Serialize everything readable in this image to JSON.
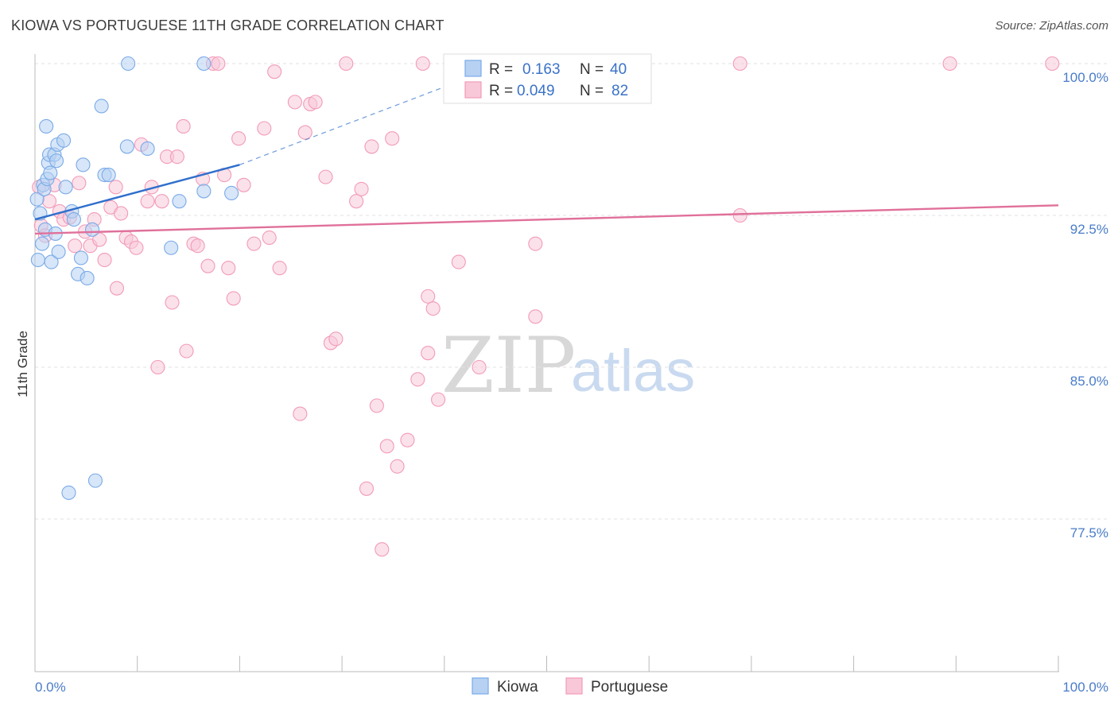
{
  "title": "KIOWA VS PORTUGUESE 11TH GRADE CORRELATION CHART",
  "source": "Source: ZipAtlas.com",
  "watermark": {
    "zip": "ZIP",
    "atlas": "atlas"
  },
  "chart_data": {
    "type": "scatter",
    "title": "KIOWA VS PORTUGUESE 11TH GRADE CORRELATION CHART",
    "xlabel": "",
    "ylabel": "11th Grade",
    "xlim": [
      0,
      100
    ],
    "ylim": [
      70.0,
      101.5
    ],
    "x_ticks": [
      0,
      10,
      20,
      30,
      40,
      50,
      60,
      70,
      80,
      90,
      100
    ],
    "x_tick_labels": {
      "left": "0.0%",
      "right": "100.0%"
    },
    "y_ticks": [
      100.0,
      92.5,
      85.0,
      77.5
    ],
    "y_tick_labels": [
      "100.0%",
      "92.5%",
      "85.0%",
      "77.5%"
    ],
    "grid": true,
    "legend": {
      "position": "top-center",
      "rows": [
        {
          "r_label": "R =",
          "r_value": "0.163",
          "n_label": "N =",
          "n_value": "40"
        },
        {
          "r_label": "R =",
          "r_value": "0.049",
          "n_label": "N =",
          "n_value": "82"
        }
      ]
    },
    "series": [
      {
        "name": "Kiowa",
        "color": "#7aaae8",
        "fill": "#b7d1f3",
        "line_color": "#2f6fcc",
        "trend": {
          "x": [
            0,
            20
          ],
          "y": [
            92.3,
            95.0
          ]
        },
        "trend_ext": {
          "x": [
            20,
            46
          ],
          "y": [
            95.0,
            100.0
          ]
        },
        "points": [
          [
            0.2,
            93.3
          ],
          [
            0.5,
            92.6
          ],
          [
            0.3,
            90.3
          ],
          [
            0.7,
            91.1
          ],
          [
            0.8,
            94.0
          ],
          [
            0.9,
            93.8
          ],
          [
            1.0,
            91.8
          ],
          [
            1.1,
            96.9
          ],
          [
            1.2,
            94.3
          ],
          [
            1.3,
            95.1
          ],
          [
            1.4,
            95.5
          ],
          [
            1.5,
            94.6
          ],
          [
            1.6,
            90.2
          ],
          [
            1.9,
            95.5
          ],
          [
            2.0,
            91.6
          ],
          [
            2.1,
            95.2
          ],
          [
            2.2,
            96.0
          ],
          [
            2.3,
            90.7
          ],
          [
            2.8,
            96.2
          ],
          [
            3.0,
            93.9
          ],
          [
            3.6,
            92.7
          ],
          [
            3.8,
            92.3
          ],
          [
            4.2,
            89.6
          ],
          [
            4.5,
            90.4
          ],
          [
            4.7,
            95.0
          ],
          [
            5.1,
            89.4
          ],
          [
            5.6,
            91.8
          ],
          [
            6.5,
            97.9
          ],
          [
            6.8,
            94.5
          ],
          [
            7.2,
            94.5
          ],
          [
            9.0,
            95.9
          ],
          [
            9.1,
            100.0
          ],
          [
            11.0,
            95.8
          ],
          [
            13.3,
            90.9
          ],
          [
            14.1,
            93.2
          ],
          [
            16.5,
            100.0
          ],
          [
            16.5,
            93.7
          ],
          [
            19.2,
            93.6
          ],
          [
            3.3,
            78.8
          ],
          [
            5.9,
            79.4
          ]
        ]
      },
      {
        "name": "Portuguese",
        "color": "#f29bb8",
        "fill": "#f8c8d8",
        "line_color": "#e0709a",
        "trend": {
          "x": [
            0,
            100
          ],
          "y": [
            91.6,
            93.0
          ]
        },
        "points": [
          [
            0.4,
            93.9
          ],
          [
            0.6,
            92.0
          ],
          [
            1.0,
            91.5
          ],
          [
            1.4,
            93.2
          ],
          [
            1.9,
            94.0
          ],
          [
            2.4,
            92.7
          ],
          [
            2.8,
            92.3
          ],
          [
            3.4,
            92.4
          ],
          [
            3.9,
            91.0
          ],
          [
            4.3,
            94.1
          ],
          [
            4.9,
            91.7
          ],
          [
            5.4,
            91.0
          ],
          [
            5.8,
            92.3
          ],
          [
            6.3,
            91.3
          ],
          [
            6.8,
            90.3
          ],
          [
            7.4,
            92.9
          ],
          [
            7.9,
            93.9
          ],
          [
            8.4,
            92.6
          ],
          [
            8.9,
            91.4
          ],
          [
            9.4,
            91.2
          ],
          [
            9.9,
            90.9
          ],
          [
            10.4,
            96.0
          ],
          [
            11.0,
            93.2
          ],
          [
            11.4,
            93.9
          ],
          [
            12.4,
            93.2
          ],
          [
            12.9,
            95.4
          ],
          [
            13.4,
            88.2
          ],
          [
            13.9,
            95.4
          ],
          [
            14.5,
            96.9
          ],
          [
            14.8,
            85.8
          ],
          [
            15.5,
            91.1
          ],
          [
            15.9,
            91.0
          ],
          [
            16.4,
            94.3
          ],
          [
            16.9,
            90.0
          ],
          [
            17.4,
            100.0
          ],
          [
            17.9,
            100.0
          ],
          [
            18.5,
            94.5
          ],
          [
            18.9,
            89.9
          ],
          [
            19.4,
            88.4
          ],
          [
            19.9,
            96.3
          ],
          [
            20.4,
            94.0
          ],
          [
            21.4,
            91.1
          ],
          [
            22.4,
            96.8
          ],
          [
            22.9,
            91.4
          ],
          [
            23.4,
            99.6
          ],
          [
            23.9,
            89.9
          ],
          [
            25.4,
            98.1
          ],
          [
            25.9,
            82.7
          ],
          [
            26.4,
            96.6
          ],
          [
            26.9,
            98.0
          ],
          [
            27.4,
            98.1
          ],
          [
            28.4,
            94.4
          ],
          [
            28.9,
            86.2
          ],
          [
            29.4,
            86.4
          ],
          [
            30.4,
            100.0
          ],
          [
            31.4,
            93.2
          ],
          [
            31.9,
            93.8
          ],
          [
            32.4,
            79.0
          ],
          [
            32.9,
            95.9
          ],
          [
            33.4,
            83.1
          ],
          [
            33.9,
            76.0
          ],
          [
            34.4,
            81.1
          ],
          [
            34.9,
            96.3
          ],
          [
            35.4,
            80.1
          ],
          [
            36.4,
            81.4
          ],
          [
            37.4,
            84.4
          ],
          [
            37.9,
            100.0
          ],
          [
            38.4,
            85.7
          ],
          [
            38.4,
            88.5
          ],
          [
            38.9,
            87.9
          ],
          [
            39.4,
            83.4
          ],
          [
            41.4,
            90.2
          ],
          [
            43.4,
            85.0
          ],
          [
            48.4,
            100.0
          ],
          [
            48.9,
            91.1
          ],
          [
            48.9,
            87.5
          ],
          [
            68.9,
            100.0
          ],
          [
            68.9,
            92.5
          ],
          [
            89.4,
            100.0
          ],
          [
            99.4,
            100.0
          ],
          [
            12.0,
            85.0
          ],
          [
            8.0,
            88.9
          ]
        ]
      }
    ]
  },
  "bottom_legend": [
    "Kiowa",
    "Portuguese"
  ]
}
